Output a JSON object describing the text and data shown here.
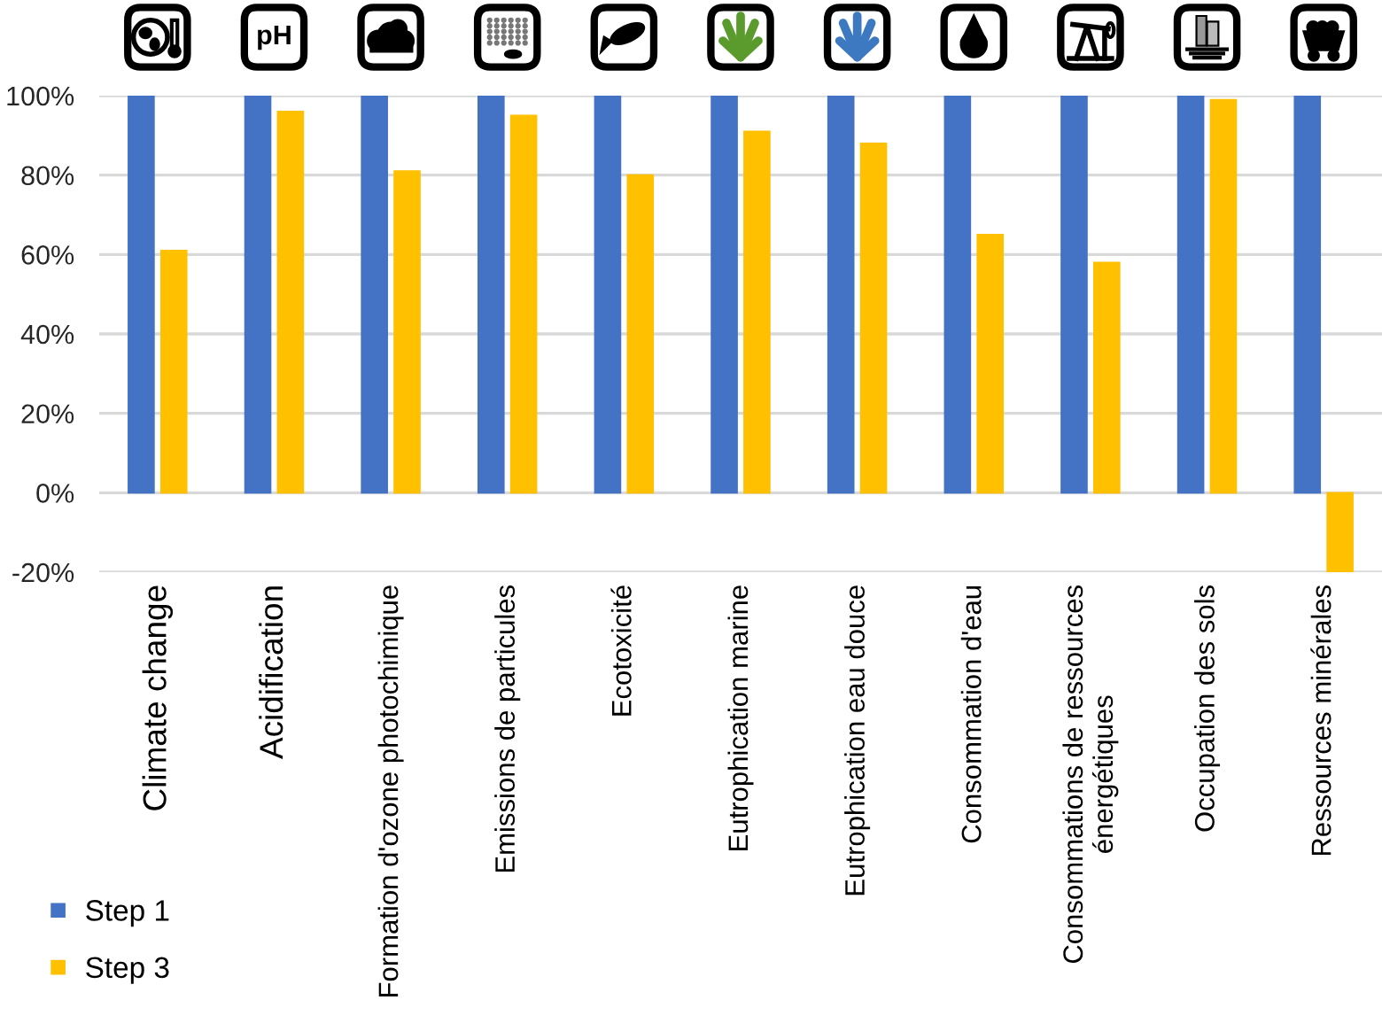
{
  "chart_data": {
    "type": "bar",
    "categories": [
      "Climate change",
      "Acidification",
      "Formation d'ozone photochimique",
      "Emissions de particules",
      "Ecotoxicité",
      "Eutrophication marine",
      "Eutrophication eau douce",
      "Consommation d'eau",
      "Consommations de ressources\nénergétiques",
      "Occupation des sols",
      "Ressources minérales"
    ],
    "series": [
      {
        "name": "Step 1",
        "color": "#4472c4",
        "values": [
          100,
          100,
          100,
          100,
          100,
          100,
          100,
          100,
          100,
          100,
          100
        ]
      },
      {
        "name": "Step 3",
        "color": "#ffc000",
        "values": [
          61,
          96,
          81,
          95,
          80,
          91,
          88,
          65,
          58,
          99,
          -20
        ]
      }
    ],
    "ylim": [
      -20,
      100
    ],
    "yticks": [
      {
        "value": -20,
        "label": "-20%"
      },
      {
        "value": 0,
        "label": "0%"
      },
      {
        "value": 20,
        "label": "20%"
      },
      {
        "value": 40,
        "label": "40%"
      },
      {
        "value": 60,
        "label": "60%"
      },
      {
        "value": 80,
        "label": "80%"
      },
      {
        "value": 100,
        "label": "100%"
      }
    ],
    "grid": "y",
    "legend": "bottom left",
    "annotations": [
      "pH"
    ]
  }
}
